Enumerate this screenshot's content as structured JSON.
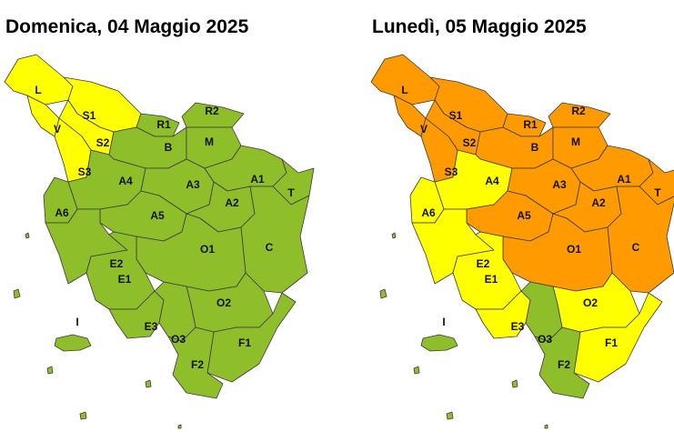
{
  "maps": [
    {
      "title": "Domenica, 04 Maggio 2025",
      "zones": [
        {
          "label": "L",
          "color": "#ffff00"
        },
        {
          "label": "V",
          "color": "#ffff00"
        },
        {
          "label": "S1",
          "color": "#ffff00"
        },
        {
          "label": "S2",
          "color": "#ffff00"
        },
        {
          "label": "S3",
          "color": "#ffff00"
        },
        {
          "label": "R1",
          "color": "#8fbe2b"
        },
        {
          "label": "R2",
          "color": "#8fbe2b"
        },
        {
          "label": "B",
          "color": "#8fbe2b"
        },
        {
          "label": "M",
          "color": "#8fbe2b"
        },
        {
          "label": "A4",
          "color": "#8fbe2b"
        },
        {
          "label": "A3",
          "color": "#8fbe2b"
        },
        {
          "label": "A1",
          "color": "#8fbe2b"
        },
        {
          "label": "T",
          "color": "#8fbe2b"
        },
        {
          "label": "A2",
          "color": "#8fbe2b"
        },
        {
          "label": "A6",
          "color": "#8fbe2b"
        },
        {
          "label": "A5",
          "color": "#8fbe2b"
        },
        {
          "label": "C",
          "color": "#8fbe2b"
        },
        {
          "label": "O1",
          "color": "#8fbe2b"
        },
        {
          "label": "E2",
          "color": "#8fbe2b"
        },
        {
          "label": "E1",
          "color": "#8fbe2b"
        },
        {
          "label": "O2",
          "color": "#8fbe2b"
        },
        {
          "label": "E3",
          "color": "#8fbe2b"
        },
        {
          "label": "O3",
          "color": "#8fbe2b"
        },
        {
          "label": "F1",
          "color": "#8fbe2b"
        },
        {
          "label": "F2",
          "color": "#8fbe2b"
        },
        {
          "label": "I",
          "color": "#8fbe2b"
        }
      ]
    },
    {
      "title": "Lunedì, 05 Maggio 2025",
      "zones": [
        {
          "label": "L",
          "color": "#ff9a00"
        },
        {
          "label": "V",
          "color": "#ff9a00"
        },
        {
          "label": "S1",
          "color": "#ff9a00"
        },
        {
          "label": "S2",
          "color": "#ff9a00"
        },
        {
          "label": "S3",
          "color": "#ff9a00"
        },
        {
          "label": "R1",
          "color": "#ff9a00"
        },
        {
          "label": "R2",
          "color": "#ff9a00"
        },
        {
          "label": "B",
          "color": "#ff9a00"
        },
        {
          "label": "M",
          "color": "#ff9a00"
        },
        {
          "label": "A4",
          "color": "#ffff00"
        },
        {
          "label": "A3",
          "color": "#ff9a00"
        },
        {
          "label": "A1",
          "color": "#ff9a00"
        },
        {
          "label": "T",
          "color": "#ff9a00"
        },
        {
          "label": "A2",
          "color": "#ff9a00"
        },
        {
          "label": "A6",
          "color": "#ffff00"
        },
        {
          "label": "A5",
          "color": "#ff9a00"
        },
        {
          "label": "C",
          "color": "#ff9a00"
        },
        {
          "label": "O1",
          "color": "#ff9a00"
        },
        {
          "label": "E2",
          "color": "#ffff00"
        },
        {
          "label": "E1",
          "color": "#ffff00"
        },
        {
          "label": "O2",
          "color": "#ffff00"
        },
        {
          "label": "E3",
          "color": "#ffff00"
        },
        {
          "label": "O3",
          "color": "#8fbe2b"
        },
        {
          "label": "F1",
          "color": "#ffff00"
        },
        {
          "label": "F2",
          "color": "#8fbe2b"
        },
        {
          "label": "I",
          "color": "#8fbe2b"
        }
      ]
    }
  ]
}
